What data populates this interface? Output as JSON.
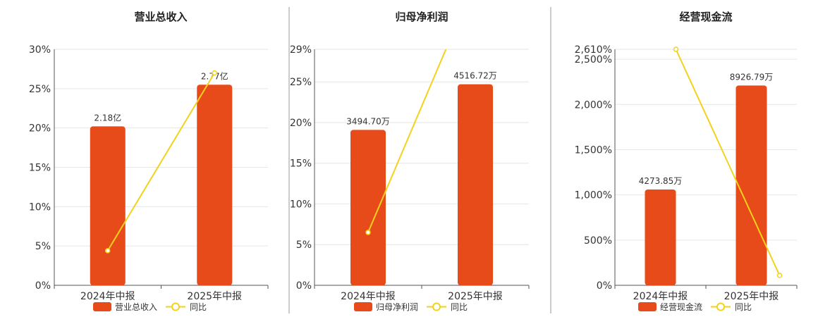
{
  "chart_data": [
    {
      "type": "bar",
      "title": "营业总收入",
      "categories": [
        "2024年中报",
        "2025年中报"
      ],
      "bar_axis_ticks": [
        "0%",
        "5%",
        "10%",
        "15%",
        "20%",
        "25%",
        "30%"
      ],
      "bar_ylim": [
        0,
        30
      ],
      "series": [
        {
          "name": "营业总收入",
          "type": "bar",
          "labels": [
            "2.18亿",
            "2.77亿"
          ],
          "values": [
            20.2,
            25.5
          ]
        },
        {
          "name": "同比",
          "type": "line",
          "values": [
            4.4,
            27.0
          ]
        }
      ]
    },
    {
      "type": "bar",
      "title": "归母净利润",
      "categories": [
        "2024年中报",
        "2025年中报"
      ],
      "bar_axis_ticks": [
        "0%",
        "5%",
        "10%",
        "15%",
        "20%",
        "25%",
        "29%"
      ],
      "bar_ylim": [
        0,
        29
      ],
      "series": [
        {
          "name": "归母净利润",
          "type": "bar",
          "labels": [
            "3494.70万",
            "4516.72万"
          ],
          "values": [
            19.1,
            24.7
          ]
        },
        {
          "name": "同比",
          "type": "line",
          "values": [
            6.5,
            37.5
          ]
        }
      ]
    },
    {
      "type": "bar",
      "title": "经营现金流",
      "categories": [
        "2024年中报",
        "2025年中报"
      ],
      "bar_axis_ticks": [
        "0%",
        "500%",
        "1,000%",
        "1,500%",
        "2,000%",
        "2,500%",
        "2,610%"
      ],
      "bar_ylim": [
        0,
        2610
      ],
      "series": [
        {
          "name": "经营现金流",
          "type": "bar",
          "labels": [
            "4273.85万",
            "8926.79万"
          ],
          "values": [
            1060,
            2210
          ]
        },
        {
          "name": "同比",
          "type": "line",
          "values": [
            2610,
            110
          ]
        }
      ]
    }
  ],
  "colors": {
    "bar": "#e84b1a",
    "line": "#f2d21b"
  }
}
